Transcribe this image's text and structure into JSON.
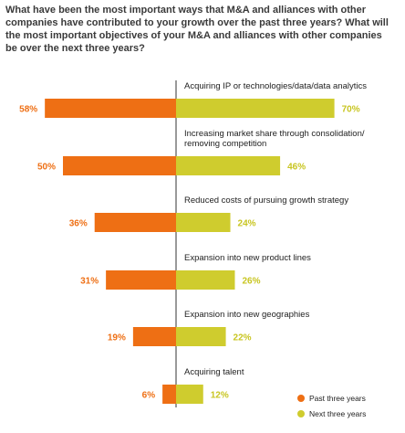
{
  "chart_data": {
    "type": "bar",
    "title": "What have been the most important ways that M&A and alliances with other companies have contributed to your growth over the past three years? What will the most important objectives of your M&A and alliances with other companies be over the next three years?",
    "categories": [
      [
        "Acquiring IP or technologies/data/data analytics"
      ],
      [
        "Increasing market share through consolidation/",
        "removing competition"
      ],
      [
        "Reduced costs of pursuing growth strategy"
      ],
      [
        "Expansion into new product lines"
      ],
      [
        "Expansion into new geographies"
      ],
      [
        "Acquiring talent"
      ]
    ],
    "series": [
      {
        "name": "Past three years",
        "values": [
          58,
          50,
          36,
          31,
          19,
          6
        ],
        "labels": [
          "58%",
          "50%",
          "36%",
          "31%",
          "19%",
          "6%"
        ],
        "color": "#ee6f14",
        "label_color": "#ee6f14"
      },
      {
        "name": "Next three years",
        "values": [
          70,
          46,
          24,
          26,
          22,
          12
        ],
        "labels": [
          "70%",
          "46%",
          "24%",
          "26%",
          "22%",
          "12%"
        ],
        "color": "#cfcc2e",
        "label_color": "#c8c520"
      }
    ],
    "legend_position": "bottom-right",
    "divider_color": "#333333"
  }
}
